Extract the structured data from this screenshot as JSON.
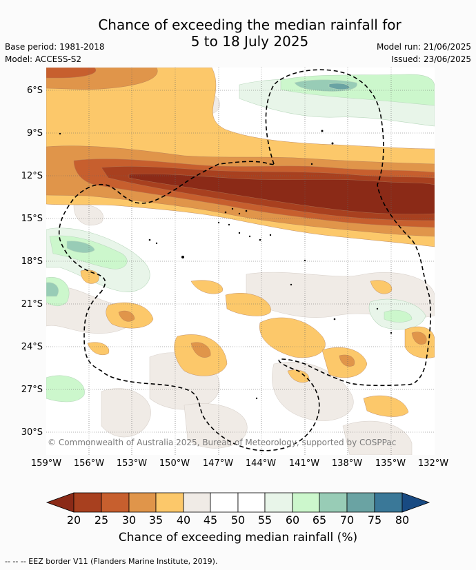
{
  "title": {
    "line1": "Chance of exceeding the median rainfall for",
    "line2": "5 to 18 July 2025"
  },
  "meta": {
    "base_period": "Base period: 1981-2018",
    "model": "Model: ACCESS-S2",
    "model_run": "Model run: 21/06/2025",
    "issued": "Issued: 23/06/2025"
  },
  "lat_labels": [
    "6°S",
    "9°S",
    "12°S",
    "15°S",
    "18°S",
    "21°S",
    "24°S",
    "27°S",
    "30°S"
  ],
  "lon_labels": [
    "159°W",
    "156°W",
    "153°W",
    "150°W",
    "147°W",
    "144°W",
    "141°W",
    "138°W",
    "135°W",
    "132°W"
  ],
  "map": {
    "extent": {
      "lon_min": -159,
      "lon_max": -132,
      "lat_min": -31.5,
      "lat_max": -4.5
    },
    "gridlines": "dotted",
    "copyright": "© Commonwealth of Australia 2025, Bureau of Meteorology, supported by COSPPac"
  },
  "colorbar": {
    "ticks": [
      "20",
      "25",
      "30",
      "35",
      "40",
      "45",
      "50",
      "55",
      "60",
      "65",
      "70",
      "75",
      "80"
    ],
    "colors": {
      "lt20": "#8b2a17",
      "20-25": "#a8401f",
      "25-30": "#c75f2e",
      "30-35": "#e0954a",
      "35-40": "#fcc86a",
      "40-45": "#f0ebe6",
      "45-50": "#ffffff",
      "50-55": "#ffffff",
      "55-60": "#e8f5e9",
      "60-65": "#ccf7cc",
      "65-70": "#98ccb6",
      "70-75": "#6aa3a3",
      "75-80": "#3a7898",
      "gt80": "#184a82"
    },
    "label": "Chance of exceeding median rainfall (%)"
  },
  "footnote": "--  --  -- EEZ border V11 (Flanders Marine Institute, 2019)."
}
